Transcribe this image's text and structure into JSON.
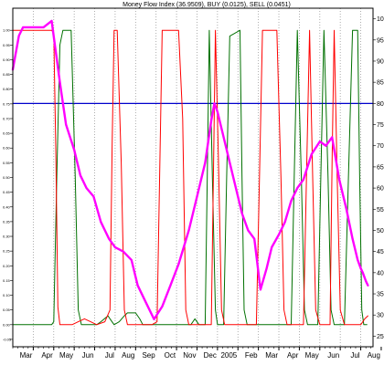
{
  "chart_data": {
    "type": "line",
    "title": "Money Flow Index (36.9509), BUY (0.0125), SELL (0.0451)",
    "x_range": [
      0,
      17.6
    ],
    "x_ticks": [
      {
        "label": "Mar",
        "x": 1
      },
      {
        "label": "Apr",
        "x": 2
      },
      {
        "label": "May",
        "x": 3
      },
      {
        "label": "Jun",
        "x": 4
      },
      {
        "label": "Jul",
        "x": 5
      },
      {
        "label": "Aug",
        "x": 6
      },
      {
        "label": "Sep",
        "x": 7
      },
      {
        "label": "Oct",
        "x": 8
      },
      {
        "label": "Nov",
        "x": 9
      },
      {
        "label": "Dec",
        "x": 10
      },
      {
        "label": "2005",
        "x": 11
      },
      {
        "label": "Feb",
        "x": 12
      },
      {
        "label": "Mar",
        "x": 13
      },
      {
        "label": "Apr",
        "x": 14
      },
      {
        "label": "May",
        "x": 15
      },
      {
        "label": "Jun",
        "x": 16
      },
      {
        "label": "Jul",
        "x": 17
      },
      {
        "label": "Aug",
        "x": 18
      }
    ],
    "left_axis": {
      "ylim": [
        -0.075,
        1.075
      ],
      "ticks": [
        "1.00",
        "0.95",
        "0.90",
        "0.85",
        "0.80",
        "0.75",
        "0.70",
        "0.65",
        "0.60",
        "0.55",
        "0.50",
        "0.45",
        "0.40",
        "0.35",
        "0.30",
        "0.25",
        "0.20",
        "0.15",
        "0.10",
        "0.05",
        "0.00",
        "-0.05"
      ]
    },
    "right_axis": {
      "ylim": [
        22.5,
        102.5
      ],
      "ticks": [
        100,
        95,
        90,
        85,
        80,
        75,
        70,
        65,
        60,
        55,
        50,
        45,
        40,
        35,
        30,
        25
      ]
    },
    "grid": "vertical dotted",
    "reference_line": {
      "axis": "right",
      "value": 80,
      "color": "#0000cc"
    },
    "series": [
      {
        "axis": "right",
        "color": "#ff00ff",
        "points": [
          [
            0,
            88
          ],
          [
            0.3,
            96
          ],
          [
            0.5,
            98
          ],
          [
            1,
            98
          ],
          [
            1.5,
            98
          ],
          [
            1.9,
            99.5
          ],
          [
            2.05,
            94
          ],
          [
            2.3,
            85
          ],
          [
            2.6,
            75
          ],
          [
            3.0,
            69
          ],
          [
            3.3,
            63
          ],
          [
            3.6,
            60
          ],
          [
            3.95,
            58
          ],
          [
            4.3,
            52
          ],
          [
            4.7,
            48
          ],
          [
            5.0,
            46
          ],
          [
            5.4,
            45
          ],
          [
            5.8,
            43
          ],
          [
            6.1,
            37
          ],
          [
            6.5,
            33
          ],
          [
            6.9,
            29
          ],
          [
            7.3,
            32
          ],
          [
            7.7,
            37
          ],
          [
            8.1,
            42
          ],
          [
            8.6,
            50
          ],
          [
            9.0,
            58
          ],
          [
            9.4,
            66
          ],
          [
            9.7,
            76
          ],
          [
            9.85,
            80
          ],
          [
            10.0,
            78
          ],
          [
            10.3,
            72
          ],
          [
            10.6,
            66
          ],
          [
            10.9,
            60
          ],
          [
            11.2,
            54
          ],
          [
            11.5,
            50
          ],
          [
            11.8,
            48
          ],
          [
            12.1,
            36
          ],
          [
            12.4,
            41
          ],
          [
            12.65,
            46
          ],
          [
            13.0,
            49
          ],
          [
            13.3,
            52
          ],
          [
            13.6,
            57
          ],
          [
            13.9,
            60
          ],
          [
            14.2,
            62
          ],
          [
            14.6,
            68
          ],
          [
            15.0,
            71
          ],
          [
            15.3,
            70
          ],
          [
            15.6,
            72
          ],
          [
            15.95,
            62
          ],
          [
            16.3,
            55
          ],
          [
            16.6,
            48
          ],
          [
            16.85,
            43
          ],
          [
            17.0,
            41
          ],
          [
            17.1,
            40
          ],
          [
            17.25,
            38
          ],
          [
            17.35,
            37
          ]
        ]
      },
      {
        "axis": "left",
        "color": "#ff0000",
        "points": [
          [
            0,
            1.0
          ],
          [
            1.9,
            1.0
          ],
          [
            2.0,
            0.99
          ],
          [
            2.1,
            0.6
          ],
          [
            2.2,
            0.06
          ],
          [
            2.3,
            0.0
          ],
          [
            2.9,
            0.0
          ],
          [
            3.2,
            0.01
          ],
          [
            3.5,
            0.02
          ],
          [
            3.8,
            0.01
          ],
          [
            4.1,
            0.0
          ],
          [
            4.5,
            0.01
          ],
          [
            4.75,
            0.05
          ],
          [
            4.85,
            0.6
          ],
          [
            4.95,
            1.0
          ],
          [
            5.1,
            1.0
          ],
          [
            5.3,
            0.55
          ],
          [
            5.45,
            0.05
          ],
          [
            5.6,
            0.0
          ],
          [
            6.8,
            0.0
          ],
          [
            7.05,
            0.01
          ],
          [
            7.3,
            1.0
          ],
          [
            8.1,
            1.0
          ],
          [
            8.3,
            0.7
          ],
          [
            8.45,
            0.05
          ],
          [
            8.6,
            0.0
          ],
          [
            9.7,
            0.0
          ],
          [
            9.8,
            0.5
          ],
          [
            9.9,
            1.0
          ],
          [
            10.05,
            0.55
          ],
          [
            10.2,
            0.05
          ],
          [
            10.35,
            0.0
          ],
          [
            11.9,
            0.0
          ],
          [
            12.05,
            0.5
          ],
          [
            12.2,
            1.0
          ],
          [
            12.9,
            1.0
          ],
          [
            13.1,
            0.5
          ],
          [
            13.25,
            0.05
          ],
          [
            13.4,
            0.0
          ],
          [
            14.2,
            0.0
          ],
          [
            14.35,
            0.5
          ],
          [
            14.5,
            1.0
          ],
          [
            14.65,
            0.5
          ],
          [
            14.8,
            0.05
          ],
          [
            15.0,
            0.0
          ],
          [
            15.5,
            0.0
          ],
          [
            15.6,
            0.55
          ],
          [
            15.7,
            1.0
          ],
          [
            15.85,
            0.5
          ],
          [
            16.0,
            0.05
          ],
          [
            16.2,
            0.0
          ],
          [
            17.0,
            0.0
          ],
          [
            17.2,
            0.02
          ],
          [
            17.35,
            0.03
          ]
        ]
      },
      {
        "axis": "left",
        "color": "#007000",
        "points": [
          [
            0,
            0.0
          ],
          [
            1.9,
            0.0
          ],
          [
            2.0,
            0.01
          ],
          [
            2.15,
            0.5
          ],
          [
            2.3,
            0.95
          ],
          [
            2.45,
            1.0
          ],
          [
            2.85,
            1.0
          ],
          [
            3.05,
            0.5
          ],
          [
            3.2,
            0.05
          ],
          [
            3.35,
            0.0
          ],
          [
            4.1,
            0.0
          ],
          [
            4.3,
            0.01
          ],
          [
            4.65,
            0.03
          ],
          [
            4.75,
            0.02
          ],
          [
            4.95,
            0.0
          ],
          [
            5.2,
            0.01
          ],
          [
            5.45,
            0.03
          ],
          [
            5.6,
            0.04
          ],
          [
            6.0,
            0.04
          ],
          [
            6.2,
            0.02
          ],
          [
            6.35,
            0.0
          ],
          [
            8.7,
            0.0
          ],
          [
            8.9,
            0.02
          ],
          [
            9.1,
            0.0
          ],
          [
            9.4,
            0.0
          ],
          [
            9.5,
            0.5
          ],
          [
            9.6,
            1.0
          ],
          [
            9.75,
            0.5
          ],
          [
            9.9,
            0.05
          ],
          [
            10.0,
            0.0
          ],
          [
            10.3,
            0.0
          ],
          [
            10.45,
            0.5
          ],
          [
            10.6,
            0.98
          ],
          [
            11.1,
            1.0
          ],
          [
            11.2,
            0.5
          ],
          [
            11.3,
            0.05
          ],
          [
            11.45,
            0.0
          ],
          [
            13.6,
            0.0
          ],
          [
            13.75,
            0.5
          ],
          [
            13.9,
            1.0
          ],
          [
            14.1,
            0.5
          ],
          [
            14.25,
            0.05
          ],
          [
            14.4,
            0.0
          ],
          [
            14.9,
            0.0
          ],
          [
            15.05,
            0.5
          ],
          [
            15.2,
            1.0
          ],
          [
            15.4,
            0.5
          ],
          [
            15.55,
            0.05
          ],
          [
            15.7,
            0.0
          ],
          [
            16.2,
            0.0
          ],
          [
            16.4,
            0.5
          ],
          [
            16.6,
            1.0
          ],
          [
            16.85,
            1.0
          ],
          [
            16.95,
            0.5
          ],
          [
            17.05,
            0.05
          ],
          [
            17.15,
            0.0
          ],
          [
            17.3,
            0.0
          ]
        ]
      }
    ]
  }
}
